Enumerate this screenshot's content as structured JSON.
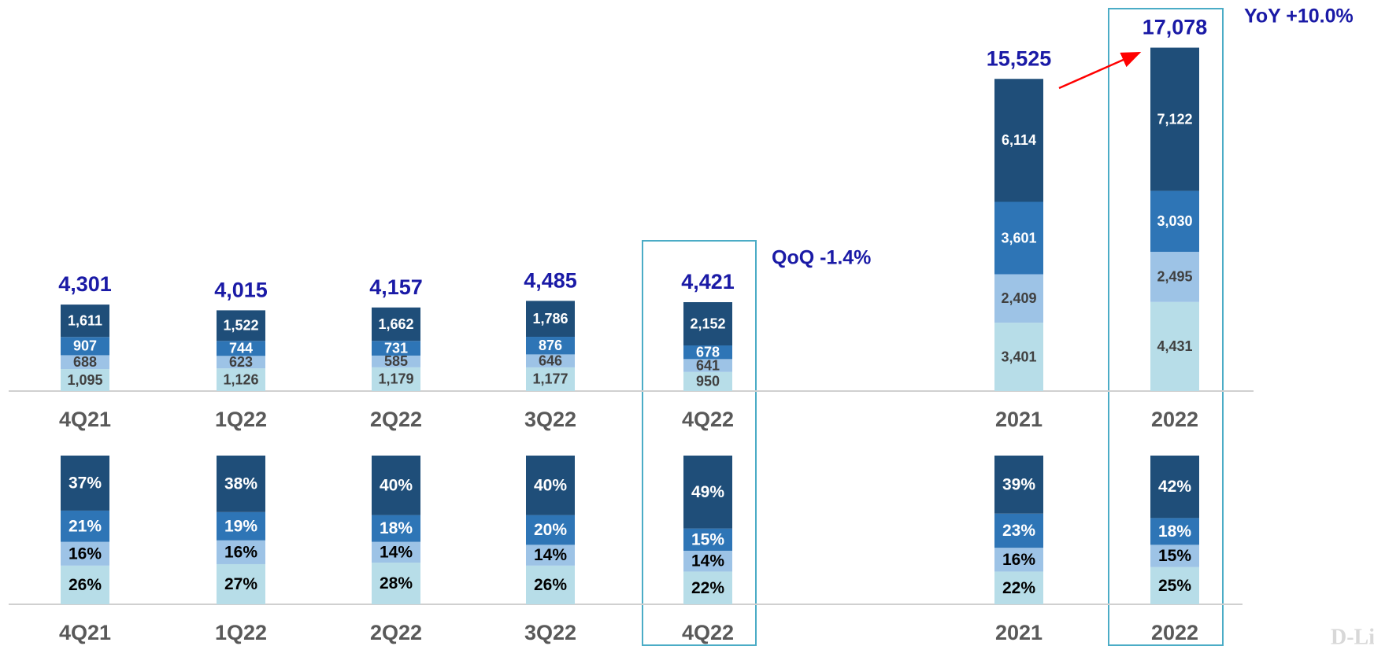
{
  "chart_data": [
    {
      "type": "bar",
      "stacked": true,
      "categories": [
        "4Q21",
        "1Q22",
        "2Q22",
        "3Q22",
        "4Q22",
        "2021",
        "2022"
      ],
      "ylim": [
        0,
        18000
      ],
      "series": [
        {
          "color": "#b7dde8",
          "label_color": "#404040",
          "values": [
            1095,
            1126,
            1179,
            1177,
            950,
            3401,
            4431
          ],
          "value_labels": [
            "1,095",
            "1,126",
            "1,179",
            "1,177",
            "950",
            "3,401",
            "4,431"
          ]
        },
        {
          "color": "#9dc3e6",
          "label_color": "#404040",
          "values": [
            688,
            623,
            585,
            646,
            641,
            2409,
            2495
          ],
          "value_labels": [
            "688",
            "623",
            "585",
            "646",
            "641",
            "2,409",
            "2,495"
          ]
        },
        {
          "color": "#2e75b6",
          "label_color": "#ffffff",
          "values": [
            907,
            744,
            731,
            876,
            678,
            3601,
            3030
          ],
          "value_labels": [
            "907",
            "744",
            "731",
            "876",
            "678",
            "3,601",
            "3,030"
          ]
        },
        {
          "color": "#1f4e79",
          "label_color": "#ffffff",
          "values": [
            1611,
            1522,
            1662,
            1786,
            2152,
            6114,
            7122
          ],
          "value_labels": [
            "1,611",
            "1,522",
            "1,662",
            "1,786",
            "2,152",
            "6,114",
            "7,122"
          ]
        }
      ],
      "totals": {
        "color": "#1a1aa6",
        "values": [
          4301,
          4015,
          4157,
          4485,
          4421,
          15525,
          17078
        ],
        "value_labels": [
          "4,301",
          "4,015",
          "4,157",
          "4,485",
          "4,421",
          "15,525",
          "17,078"
        ]
      },
      "annotations": [
        "QoQ -1.4%",
        "YoY +10.0%"
      ]
    },
    {
      "type": "bar",
      "stacked": true,
      "categories": [
        "4Q21",
        "1Q22",
        "2Q22",
        "3Q22",
        "4Q22",
        "2021",
        "2022"
      ],
      "ylim": [
        0,
        100
      ],
      "series": [
        {
          "color": "#b7dde8",
          "label_color": "#000000",
          "values": [
            26,
            27,
            28,
            26,
            22,
            22,
            25
          ],
          "value_labels": [
            "26%",
            "27%",
            "28%",
            "26%",
            "22%",
            "22%",
            "25%"
          ]
        },
        {
          "color": "#9dc3e6",
          "label_color": "#000000",
          "values": [
            16,
            16,
            14,
            14,
            14,
            16,
            15
          ],
          "value_labels": [
            "16%",
            "16%",
            "14%",
            "14%",
            "14%",
            "16%",
            "15%"
          ]
        },
        {
          "color": "#2e75b6",
          "label_color": "#ffffff",
          "values": [
            21,
            19,
            18,
            20,
            15,
            23,
            18
          ],
          "value_labels": [
            "21%",
            "19%",
            "18%",
            "20%",
            "15%",
            "23%",
            "18%"
          ]
        },
        {
          "color": "#1f4e79",
          "label_color": "#ffffff",
          "values": [
            37,
            38,
            40,
            40,
            49,
            39,
            42
          ],
          "value_labels": [
            "37%",
            "38%",
            "40%",
            "40%",
            "49%",
            "39%",
            "42%"
          ]
        }
      ]
    }
  ],
  "logo": "D-Link"
}
